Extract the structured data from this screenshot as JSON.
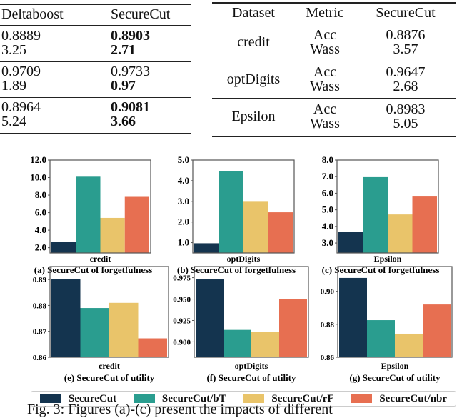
{
  "left_table": {
    "headers": [
      "Deltaboost",
      "SecureCut"
    ],
    "rows": [
      {
        "deltaboost": [
          "0.8889",
          "3.25"
        ],
        "securecut": [
          "0.8903",
          "2.71"
        ],
        "bold": [
          true,
          true
        ]
      },
      {
        "deltaboost": [
          "0.9709",
          "1.89"
        ],
        "securecut": [
          "0.9733",
          "0.97"
        ],
        "bold": [
          false,
          true
        ]
      },
      {
        "deltaboost": [
          "0.8964",
          "5.24"
        ],
        "securecut": [
          "0.9081",
          "3.66"
        ],
        "bold": [
          true,
          true
        ]
      }
    ]
  },
  "right_table": {
    "headers": [
      "Dataset",
      "Metric",
      "SecureCut"
    ],
    "rows": [
      {
        "dataset": "credit",
        "metrics": [
          "Acc",
          "Wass"
        ],
        "values": [
          "0.8876",
          "3.57"
        ]
      },
      {
        "dataset": "optDigits",
        "metrics": [
          "Acc",
          "Wass"
        ],
        "values": [
          "0.9647",
          "2.68"
        ]
      },
      {
        "dataset": "Epsilon",
        "metrics": [
          "Acc",
          "Wass"
        ],
        "values": [
          "0.8983",
          "5.05"
        ]
      }
    ]
  },
  "legend": [
    {
      "name": "SecureCut",
      "color": "#14344f"
    },
    {
      "name": "SecureCut/bT",
      "color": "#2a9d8f"
    },
    {
      "name": "SecureCut/rF",
      "color": "#e9c46a"
    },
    {
      "name": "SecureCut/nbr",
      "color": "#e76f51"
    }
  ],
  "chart_data": [
    {
      "type": "bar",
      "caption": "(a) SecureCut of forgetfulness",
      "xlabel": "credit",
      "series_names": [
        "SecureCut",
        "SecureCut/bT",
        "SecureCut/rF",
        "SecureCut/nbr"
      ],
      "values": [
        2.7,
        10.1,
        5.4,
        7.8
      ],
      "ylim": [
        1.4,
        12.0
      ],
      "yticks": [
        "2.0",
        "4.0",
        "6.0",
        "8.0",
        "10.0",
        "12.0"
      ],
      "grid": false
    },
    {
      "type": "bar",
      "caption": "(b) SecureCut of forgetfulness",
      "xlabel": "optDigits",
      "series_names": [
        "SecureCut",
        "SecureCut/bT",
        "SecureCut/rF",
        "SecureCut/nbr"
      ],
      "values": [
        0.97,
        4.45,
        2.98,
        2.47
      ],
      "ylim": [
        0.5,
        5.0
      ],
      "yticks": [
        "1.0",
        "2.0",
        "3.0",
        "4.0",
        "5.0"
      ],
      "grid": false
    },
    {
      "type": "bar",
      "caption": "(c) SecureCut of forgetfulness",
      "xlabel": "Epsilon",
      "series_names": [
        "SecureCut",
        "SecureCut/bT",
        "SecureCut/rF",
        "SecureCut/nbr"
      ],
      "values": [
        3.66,
        6.97,
        4.72,
        5.8
      ],
      "ylim": [
        2.4,
        8.0
      ],
      "yticks": [
        "3.0",
        "4.0",
        "5.0",
        "6.0",
        "7.0",
        "8.0"
      ],
      "grid": false
    },
    {
      "type": "bar",
      "caption": "(e) SecureCut of utility",
      "xlabel": "credit",
      "series_names": [
        "SecureCut",
        "SecureCut/bT",
        "SecureCut/rF",
        "SecureCut/nbr"
      ],
      "values": [
        0.8903,
        0.879,
        0.881,
        0.8673
      ],
      "ylim": [
        0.86,
        0.895
      ],
      "yticks": [
        "0.86",
        "0.87",
        "0.88",
        "0.89"
      ],
      "grid": false
    },
    {
      "type": "bar",
      "caption": "(f) SecureCut of utility",
      "xlabel": "optDigits",
      "series_names": [
        "SecureCut",
        "SecureCut/bT",
        "SecureCut/rF",
        "SecureCut/nbr"
      ],
      "values": [
        0.9733,
        0.914,
        0.912,
        0.95
      ],
      "ylim": [
        0.882,
        0.988
      ],
      "yticks": [
        "0.900",
        "0.925",
        "0.950",
        "0.975"
      ],
      "grid": false
    },
    {
      "type": "bar",
      "caption": "(g) SecureCut of utility",
      "xlabel": "Epsilon",
      "series_names": [
        "SecureCut",
        "SecureCut/bT",
        "SecureCut/rF",
        "SecureCut/nbr"
      ],
      "values": [
        0.9081,
        0.8825,
        0.8743,
        0.892
      ],
      "ylim": [
        0.86,
        0.915
      ],
      "yticks": [
        "0.86",
        "0.88",
        "0.90"
      ],
      "grid": false
    }
  ],
  "figure_caption": "Fig. 3: Figures (a)-(c) present the impacts of different"
}
